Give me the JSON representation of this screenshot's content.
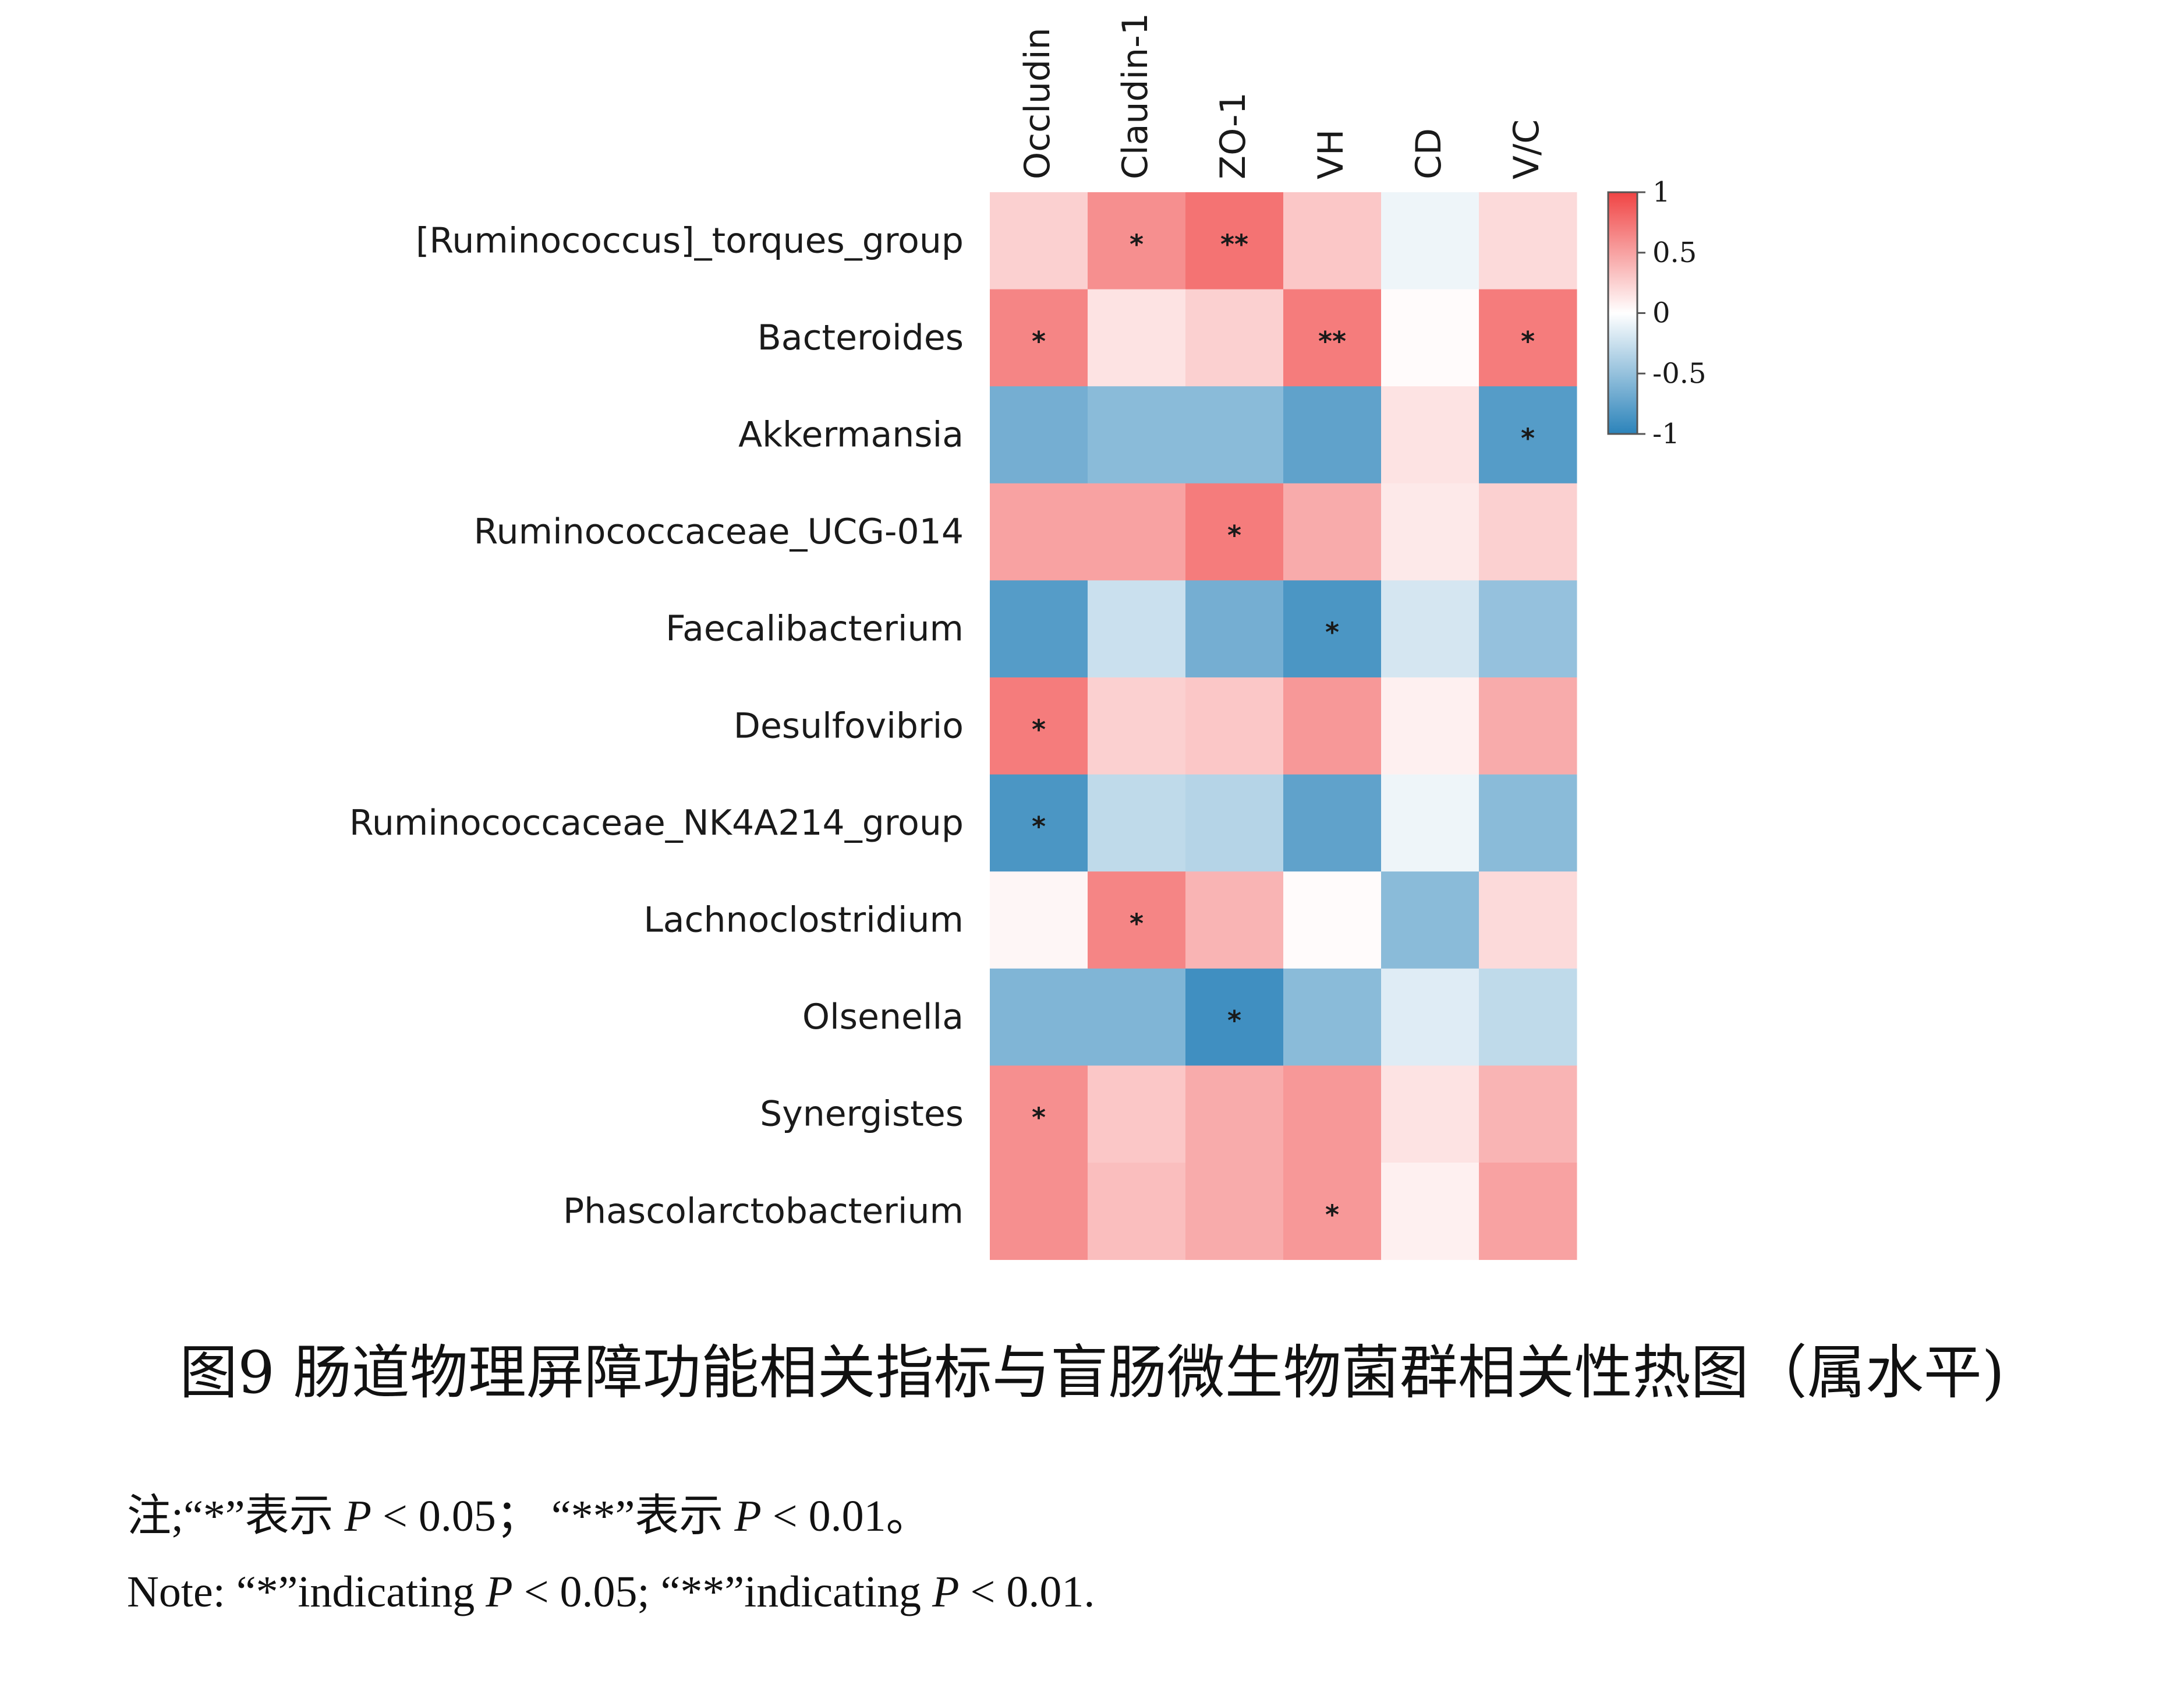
{
  "chart_data": {
    "type": "heatmap",
    "rows": [
      "[Ruminococcus]_torques_group",
      "Bacteroides",
      "Akkermansia",
      "Ruminococcaceae_UCG-014",
      "Faecalibacterium",
      "Desulfovibrio",
      "Ruminococcaceae_NK4A214_group",
      "Lachnoclostridium",
      "Olsenella",
      "Synergistes",
      "Phascolarctobacterium"
    ],
    "columns": [
      "Occludin",
      "Claudin-1",
      "ZO-1",
      "VH",
      "CD",
      "V/C"
    ],
    "values": [
      [
        0.25,
        0.6,
        0.75,
        0.3,
        -0.08,
        0.2
      ],
      [
        0.65,
        0.15,
        0.25,
        0.7,
        0.02,
        0.7
      ],
      [
        -0.65,
        -0.55,
        -0.55,
        -0.75,
        0.15,
        -0.8
      ],
      [
        0.5,
        0.5,
        0.7,
        0.45,
        0.12,
        0.25
      ],
      [
        -0.8,
        -0.25,
        -0.65,
        -0.85,
        -0.2,
        -0.5
      ],
      [
        0.7,
        0.25,
        0.3,
        0.55,
        0.08,
        0.45
      ],
      [
        -0.85,
        -0.3,
        -0.35,
        -0.75,
        -0.08,
        -0.55
      ],
      [
        0.05,
        0.65,
        0.4,
        0.02,
        -0.55,
        0.2
      ],
      [
        -0.6,
        -0.6,
        -0.9,
        -0.55,
        -0.15,
        -0.3
      ],
      [
        0.6,
        0.3,
        0.45,
        0.55,
        0.15,
        0.4
      ],
      [
        0.6,
        0.35,
        0.45,
        0.55,
        0.08,
        0.5
      ]
    ],
    "significance": [
      [
        "",
        "*",
        "**",
        "",
        "",
        ""
      ],
      [
        "*",
        "",
        "",
        "**",
        "",
        "*"
      ],
      [
        "",
        "",
        "",
        "",
        "",
        "*"
      ],
      [
        "",
        "",
        "*",
        "",
        "",
        ""
      ],
      [
        "",
        "",
        "",
        "*",
        "",
        ""
      ],
      [
        "*",
        "",
        "",
        "",
        "",
        ""
      ],
      [
        "*",
        "",
        "",
        "",
        "",
        ""
      ],
      [
        "",
        "*",
        "",
        "",
        "",
        ""
      ],
      [
        "",
        "",
        "*",
        "",
        "",
        ""
      ],
      [
        "*",
        "",
        "",
        "",
        "",
        ""
      ],
      [
        "",
        "",
        "",
        "*",
        "",
        ""
      ]
    ],
    "colorbar": {
      "range": [
        -1,
        1
      ],
      "ticks": [
        "1",
        "0.5",
        "0",
        "-0.5",
        "-1"
      ],
      "low_color": "#2b83ba",
      "mid_color": "#ffffff",
      "high_color": "#f04444"
    }
  },
  "caption": "图9 肠道物理屏障功能相关指标与盲肠微生物菌群相关性热图（属水平)",
  "note_cn": {
    "prefix": "注;“*”表示 ",
    "p1": "P",
    "mid1": " < 0.05； “**”表示 ",
    "p2": "P",
    "tail": " < 0.01。"
  },
  "note_en": {
    "prefix": "Note: “*”indicating ",
    "p1": "P",
    "mid1": " < 0.05; “**”indicating ",
    "p2": "P",
    "tail": " < 0.01."
  }
}
